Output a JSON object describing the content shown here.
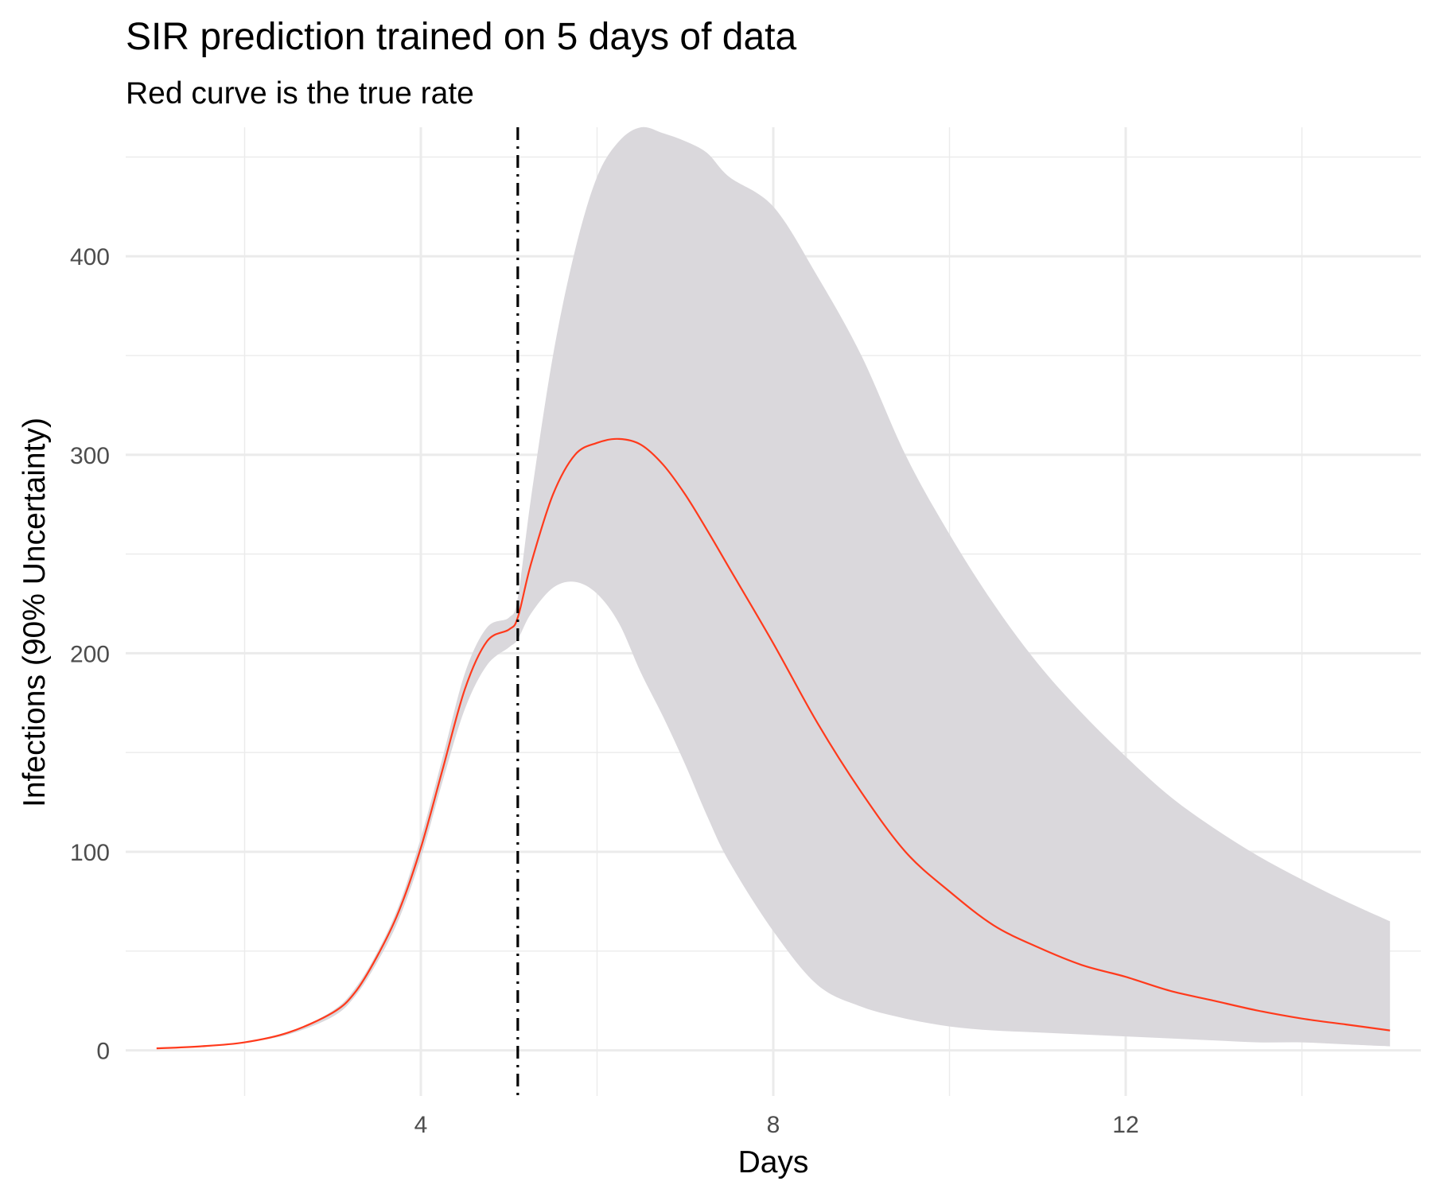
{
  "chart_data": {
    "type": "line",
    "title": "SIR prediction trained on 5 days of data",
    "subtitle": "Red curve is the true rate",
    "xlabel": "Days",
    "ylabel": "Infections (90% Uncertainty)",
    "xlim": [
      0.65,
      15.35
    ],
    "ylim": [
      -23,
      465
    ],
    "x_ticks": [
      4,
      8,
      12
    ],
    "y_ticks": [
      0,
      100,
      200,
      300,
      400
    ],
    "grid": true,
    "vline_x": 5.1,
    "colors": {
      "curve": "#ff3a1c",
      "band": "#dad8dc",
      "grid": "#ebebeb",
      "vline": "#000000"
    },
    "series": [
      {
        "x": [
          1.0,
          1.5,
          2.0,
          2.5,
          3.0,
          3.25,
          3.5,
          3.75,
          4.0,
          4.25,
          4.5,
          4.75,
          5.0,
          5.1,
          5.25,
          5.5,
          5.75,
          6.0,
          6.25,
          6.5,
          6.75,
          7.0,
          7.25,
          7.5,
          8.0,
          8.5,
          9.0,
          9.5,
          10.0,
          10.5,
          11.0,
          11.5,
          12.0,
          12.5,
          13.0,
          13.5,
          14.0,
          14.5,
          15.0
        ],
        "values": [
          1,
          2,
          4,
          9,
          19,
          29,
          47,
          70,
          102,
          142,
          182,
          206,
          212,
          218,
          245,
          280,
          300,
          306,
          308,
          305,
          295,
          280,
          262,
          243,
          205,
          165,
          130,
          100,
          80,
          63,
          52,
          43,
          37,
          30,
          25,
          20,
          16,
          13,
          10
        ]
      }
    ],
    "band": {
      "x": [
        1.0,
        1.5,
        2.0,
        2.5,
        3.0,
        3.25,
        3.5,
        3.75,
        4.0,
        4.25,
        4.5,
        4.75,
        5.0,
        5.1,
        5.25,
        5.5,
        5.75,
        6.0,
        6.25,
        6.5,
        6.75,
        7.0,
        7.25,
        7.5,
        8.0,
        8.5,
        9.0,
        9.5,
        10.0,
        10.5,
        11.0,
        11.5,
        12.0,
        12.5,
        13.0,
        13.5,
        14.0,
        14.5,
        15.0
      ],
      "lower": [
        1,
        2,
        4,
        8,
        17,
        27,
        44,
        66,
        97,
        136,
        172,
        194,
        203,
        207,
        220,
        233,
        236,
        230,
        215,
        190,
        168,
        144,
        118,
        95,
        60,
        33,
        22,
        16,
        12,
        10,
        9,
        8,
        7,
        6,
        5,
        4,
        4,
        3,
        2
      ],
      "upper": [
        1,
        2,
        4,
        9,
        20,
        31,
        49,
        73,
        107,
        148,
        190,
        213,
        218,
        228,
        278,
        350,
        403,
        440,
        458,
        465,
        462,
        458,
        452,
        440,
        425,
        390,
        350,
        300,
        260,
        225,
        195,
        170,
        148,
        128,
        112,
        98,
        86,
        75,
        65
      ]
    }
  }
}
